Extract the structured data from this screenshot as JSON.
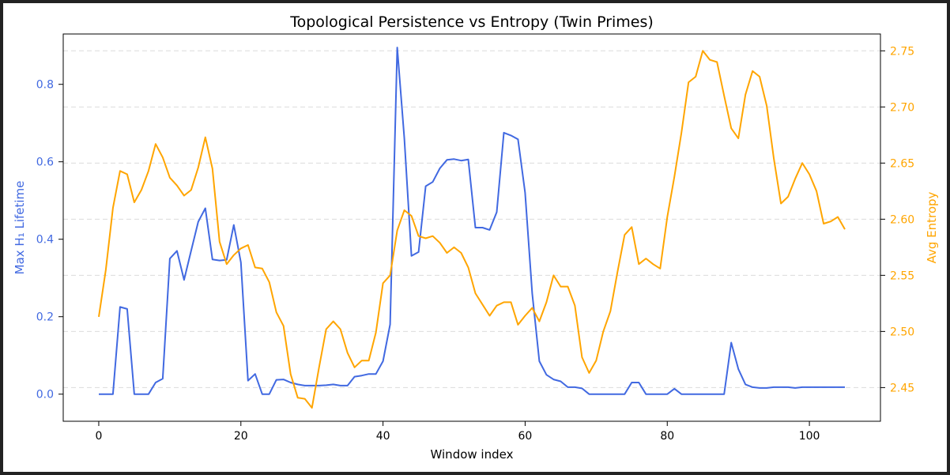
{
  "chart_data": {
    "type": "line",
    "title": "Topological Persistence vs Entropy (Twin Primes)",
    "xlabel": "Window index",
    "ylabel_left": "Max H₁ Lifetime",
    "ylabel_right": "Avg Entropy",
    "xlim": [
      -5,
      110
    ],
    "ylim_left": [
      -0.07,
      0.93
    ],
    "ylim_right": [
      2.42,
      2.765
    ],
    "x_ticks": [
      0,
      20,
      40,
      60,
      80,
      100
    ],
    "y_ticks_left": [
      0.0,
      0.2,
      0.4,
      0.6,
      0.8
    ],
    "y_ticks_right": [
      2.45,
      2.5,
      2.55,
      2.6,
      2.65,
      2.7,
      2.75
    ],
    "grid": "horizontal dashed",
    "series": [
      {
        "name": "Max H₁ Lifetime",
        "axis": "left",
        "color": "#4169e1",
        "values": [
          0.0,
          0.0,
          0.0,
          0.225,
          0.22,
          0.0,
          0.0,
          0.0,
          0.03,
          0.04,
          0.35,
          0.37,
          0.295,
          0.37,
          0.445,
          0.48,
          0.348,
          0.345,
          0.347,
          0.437,
          0.34,
          0.035,
          0.052,
          0.0,
          0.0,
          0.037,
          0.038,
          0.03,
          0.025,
          0.022,
          0.022,
          0.022,
          0.023,
          0.025,
          0.022,
          0.022,
          0.045,
          0.048,
          0.052,
          0.052,
          0.085,
          0.18,
          0.895,
          0.66,
          0.357,
          0.367,
          0.537,
          0.548,
          0.583,
          0.605,
          0.607,
          0.603,
          0.606,
          0.43,
          0.43,
          0.424,
          0.47,
          0.675,
          0.668,
          0.658,
          0.52,
          0.26,
          0.085,
          0.05,
          0.038,
          0.033,
          0.018,
          0.018,
          0.015,
          0.0,
          0.0,
          0.0,
          0.0,
          0.0,
          0.0,
          0.03,
          0.03,
          0.0,
          0.0,
          0.0,
          0.0,
          0.014,
          0.0,
          0.0,
          0.0,
          0.0,
          0.0,
          0.0,
          0.0,
          0.133,
          0.065,
          0.025,
          0.018,
          0.016,
          0.016,
          0.018,
          0.018,
          0.018,
          0.016,
          0.018,
          0.018,
          0.018,
          0.018,
          0.018,
          0.018,
          0.018
        ]
      },
      {
        "name": "Avg Entropy",
        "axis": "right",
        "color": "#ffa500",
        "values": [
          2.513,
          2.555,
          2.61,
          2.643,
          2.64,
          2.615,
          2.626,
          2.643,
          2.667,
          2.655,
          2.637,
          2.63,
          2.621,
          2.626,
          2.646,
          2.673,
          2.645,
          2.58,
          2.56,
          2.568,
          2.574,
          2.577,
          2.557,
          2.556,
          2.544,
          2.517,
          2.505,
          2.462,
          2.441,
          2.44,
          2.432,
          2.468,
          2.502,
          2.509,
          2.502,
          2.481,
          2.468,
          2.474,
          2.474,
          2.499,
          2.543,
          2.55,
          2.59,
          2.608,
          2.603,
          2.585,
          2.583,
          2.585,
          2.579,
          2.57,
          2.575,
          2.57,
          2.557,
          2.534,
          2.524,
          2.514,
          2.523,
          2.526,
          2.526,
          2.506,
          2.514,
          2.521,
          2.509,
          2.526,
          2.55,
          2.54,
          2.54,
          2.523,
          2.477,
          2.463,
          2.474,
          2.5,
          2.518,
          2.553,
          2.586,
          2.593,
          2.56,
          2.565,
          2.56,
          2.556,
          2.602,
          2.638,
          2.677,
          2.722,
          2.727,
          2.75,
          2.742,
          2.74,
          2.71,
          2.681,
          2.672,
          2.711,
          2.732,
          2.727,
          2.701,
          2.654,
          2.614,
          2.62,
          2.636,
          2.65,
          2.64,
          2.625,
          2.596,
          2.598,
          2.602,
          2.591
        ]
      }
    ]
  }
}
